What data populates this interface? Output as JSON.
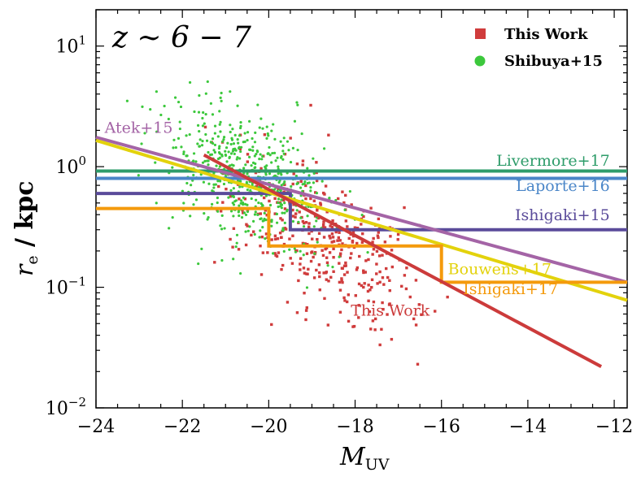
{
  "chart_data": {
    "type": "scatter",
    "annotation": "z ∼ 6 − 7",
    "xlabel_main": "M",
    "xlabel_sub": "UV",
    "ylabel_main": "r",
    "ylabel_sub": "e",
    "ylabel_unit": " / kpc",
    "xlim": [
      -24,
      -11.7
    ],
    "ylim": [
      0.01,
      20
    ],
    "yscale": "log",
    "x_ticks": [
      -24,
      -22,
      -20,
      -18,
      -16,
      -14,
      -12
    ],
    "x_tick_labels": [
      "−24",
      "−22",
      "−20",
      "−18",
      "−16",
      "−14",
      "−12"
    ],
    "y_ticks": [
      {
        "value": 0.01,
        "base": "10",
        "exp": "−2"
      },
      {
        "value": 0.1,
        "base": "10",
        "exp": "−1"
      },
      {
        "value": 1,
        "base": "10",
        "exp": "0"
      },
      {
        "value": 10,
        "base": "10",
        "exp": "1"
      }
    ],
    "legend": {
      "placement": "top-right",
      "entries": [
        {
          "label": "This Work",
          "marker": "square",
          "color": "#d03c3c"
        },
        {
          "label": "Shibuya+15",
          "marker": "circle",
          "color": "#3cc83c"
        }
      ]
    },
    "lines": [
      {
        "label": "Livermore+17",
        "color": "#2e9c6a",
        "points": [
          [
            -24,
            0.92
          ],
          [
            -11.7,
            0.92
          ]
        ],
        "label_at": [
          -12.1,
          1.02
        ],
        "anchor": "end"
      },
      {
        "label": "Laporte+16",
        "color": "#4a86c8",
        "points": [
          [
            -24,
            0.8
          ],
          [
            -11.7,
            0.8
          ]
        ],
        "label_at": [
          -12.1,
          0.63
        ],
        "anchor": "end"
      },
      {
        "label": "Ishigaki+15",
        "color": "#5a4b9a",
        "points": [
          [
            -24,
            0.6
          ],
          [
            -19.5,
            0.6
          ],
          [
            -19.5,
            0.3
          ],
          [
            -11.7,
            0.3
          ]
        ],
        "label_at": [
          -12.1,
          0.36
        ],
        "anchor": "end"
      },
      {
        "label": "Atek+15",
        "color": "#a464a6",
        "points": [
          [
            -24,
            1.75
          ],
          [
            -11.7,
            0.11
          ]
        ],
        "label_at": [
          -23.8,
          1.9
        ],
        "anchor": "start"
      },
      {
        "label": "Bouwens+17",
        "color": "#e3d20c",
        "points": [
          [
            -24,
            1.65
          ],
          [
            -11.7,
            0.078
          ]
        ],
        "label_at": [
          -15.85,
          0.128
        ],
        "anchor": "start"
      },
      {
        "label": "Ishigaki+17",
        "color": "#f49a0c",
        "points": [
          [
            -24,
            0.45
          ],
          [
            -20,
            0.45
          ],
          [
            -20,
            0.22
          ],
          [
            -16,
            0.22
          ],
          [
            -16,
            0.11
          ],
          [
            -11.7,
            0.11
          ]
        ],
        "label_at": [
          -15.5,
          0.088
        ],
        "anchor": "start"
      },
      {
        "label": "This Work",
        "color": "#cc3b3b",
        "points": [
          [
            -21.5,
            1.25
          ],
          [
            -12.3,
            0.022
          ]
        ],
        "label_at": [
          -18.1,
          0.058
        ],
        "anchor": "start"
      }
    ],
    "series": [
      {
        "name": "This Work",
        "marker": "square",
        "color": "#d03c3c",
        "n": 380,
        "x_range": [
          -21.5,
          -12.3
        ],
        "center": [
          -18.8,
          0.25
        ]
      },
      {
        "name": "Shibuya+15",
        "marker": "circle",
        "color": "#3cc83c",
        "n": 560,
        "x_range": [
          -23.5,
          -17.5
        ],
        "center": [
          -20.5,
          0.8
        ]
      }
    ]
  }
}
